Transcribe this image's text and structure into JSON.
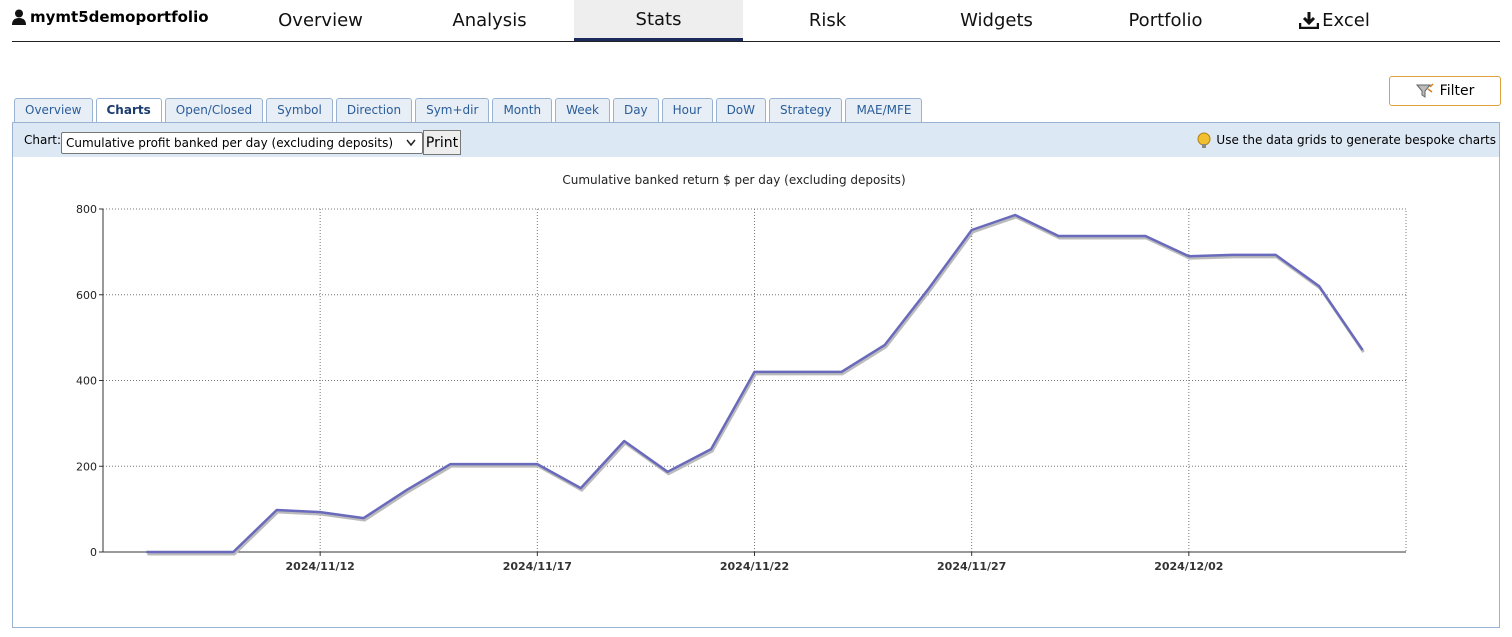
{
  "nav": {
    "user": "mymt5demoportfolio",
    "items": [
      "Overview",
      "Analysis",
      "Stats",
      "Risk",
      "Widgets",
      "Portfolio",
      "Excel"
    ],
    "active": "Stats"
  },
  "filter": "Filter",
  "tabs": {
    "items": [
      "Overview",
      "Charts",
      "Open/Closed",
      "Symbol",
      "Direction",
      "Sym+dir",
      "Month",
      "Week",
      "Day",
      "Hour",
      "DoW",
      "Strategy",
      "MAE/MFE"
    ],
    "active": "Charts"
  },
  "toolbar": {
    "label": "Chart:",
    "select": "Cumulative profit banked per day (excluding deposits)",
    "print": "Print",
    "hint": "Use the data grids to generate bespoke charts"
  },
  "chart_data": {
    "type": "line",
    "title": "Cumulative banked return $ per day (excluding deposits)",
    "x": [
      "2024/11/08",
      "2024/11/09",
      "2024/11/10",
      "2024/11/11",
      "2024/11/12",
      "2024/11/13",
      "2024/11/14",
      "2024/11/15",
      "2024/11/16",
      "2024/11/17",
      "2024/11/18",
      "2024/11/19",
      "2024/11/20",
      "2024/11/21",
      "2024/11/22",
      "2024/11/23",
      "2024/11/24",
      "2024/11/25",
      "2024/11/26",
      "2024/11/27",
      "2024/11/28",
      "2024/11/29",
      "2024/11/30",
      "2024/12/01",
      "2024/12/02",
      "2024/12/03",
      "2024/12/04",
      "2024/12/05",
      "2024/12/06"
    ],
    "values": [
      0,
      0,
      0,
      98,
      93,
      79,
      145,
      205,
      205,
      205,
      149,
      259,
      187,
      240,
      420,
      420,
      420,
      483,
      613,
      751,
      786,
      737,
      737,
      737,
      690,
      693,
      693,
      620,
      471
    ],
    "color": "#6a6abd",
    "xlim": [
      "2024/11/07",
      "2024/12/07"
    ],
    "xticks": [
      "2024/11/12",
      "2024/11/17",
      "2024/11/22",
      "2024/11/27",
      "2024/12/02"
    ],
    "ylim": [
      0,
      800
    ],
    "yticks": [
      0,
      200,
      400,
      600,
      800
    ],
    "grid": true
  }
}
